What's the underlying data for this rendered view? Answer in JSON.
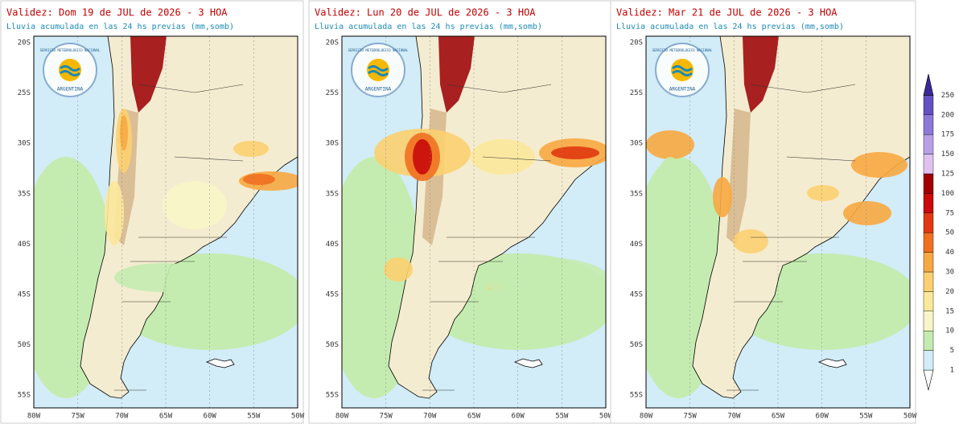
{
  "panels": [
    {
      "title": "Validez: Dom 19 de JUL de 2026 - 3 HOA",
      "subtitle": "Lluvia acumulada en las 24 hs previas (mm,somb)"
    },
    {
      "title": "Validez: Lun 20 de JUL de 2026 - 3 HOA",
      "subtitle": "Lluvia acumulada en las 24 hs previas (mm,somb)"
    },
    {
      "title": "Validez: Mar 21 de JUL de 2026 - 3 HOA",
      "subtitle": "Lluvia acumulada en las 24 hs previas (mm,somb)"
    }
  ],
  "logo": {
    "name": "SERVICIO METEOROLOGICO NACIONAL",
    "country": "ARGENTINA"
  },
  "lat_labels": [
    "20S",
    "25S",
    "30S",
    "35S",
    "40S",
    "45S",
    "50S",
    "55S"
  ],
  "lon_labels": [
    "80W",
    "75W",
    "70W",
    "65W",
    "60W",
    "55W",
    "50W"
  ],
  "colorbar": {
    "levels": [
      1,
      5,
      10,
      15,
      20,
      30,
      40,
      50,
      75,
      100,
      125,
      150,
      175,
      200,
      250
    ],
    "colors": [
      "#ffffff",
      "#d2ecf8",
      "#c4ecb0",
      "#f8f6c8",
      "#fce89a",
      "#fcd070",
      "#f8a840",
      "#f07020",
      "#e03810",
      "#c80a0a",
      "#a00000",
      "#e0c0f0",
      "#b8a0e8",
      "#8c78d8",
      "#6450c0",
      "#3c2898"
    ]
  }
}
